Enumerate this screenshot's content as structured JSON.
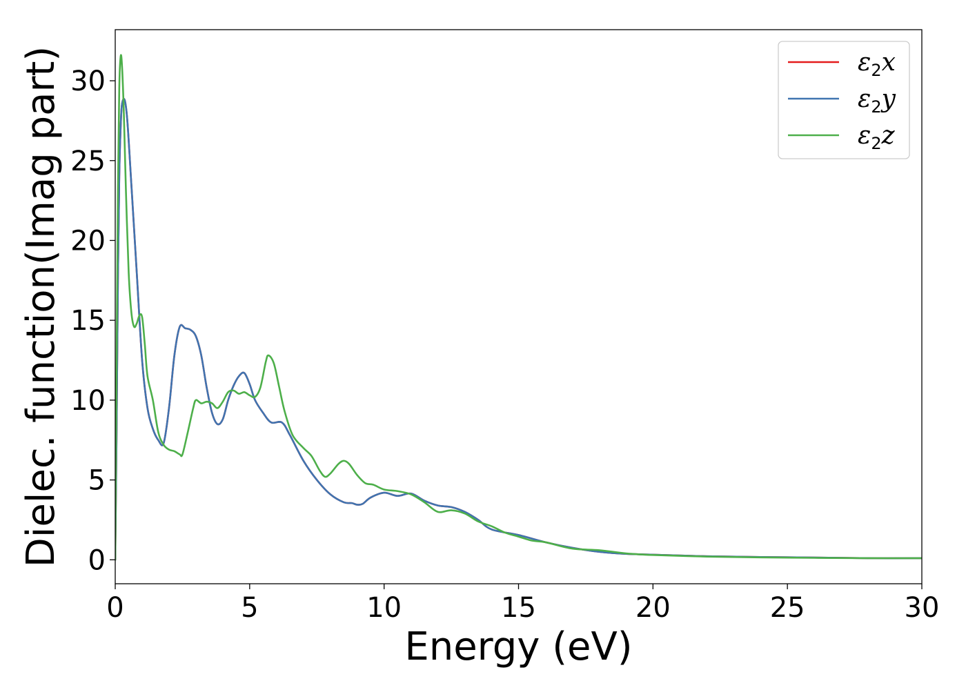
{
  "chart_data": {
    "type": "line",
    "title": "",
    "xlabel": "Energy (eV)",
    "ylabel": "Dielec. function(Imag part)",
    "xlim": [
      0,
      30
    ],
    "ylim": [
      -1.5,
      33.2
    ],
    "xticks": [
      0,
      5,
      10,
      15,
      20,
      25,
      30
    ],
    "yticks": [
      0,
      5,
      10,
      15,
      20,
      25,
      30
    ],
    "grid": false,
    "legend_position": "top-right",
    "series": [
      {
        "name": "ε2x",
        "legend": {
          "base": "ε",
          "sub": "2",
          "tail": "x"
        },
        "color": "#e41a1c",
        "x": [
          0,
          0.05,
          0.1,
          0.15,
          0.2,
          0.25,
          0.35,
          0.45,
          0.6,
          0.8,
          1.0,
          1.2,
          1.4,
          1.6,
          1.8,
          2.0,
          2.2,
          2.4,
          2.6,
          2.8,
          3.0,
          3.2,
          3.4,
          3.6,
          3.8,
          4.0,
          4.2,
          4.4,
          4.6,
          4.8,
          5.0,
          5.2,
          5.5,
          5.8,
          6.2,
          6.5,
          7.0,
          7.5,
          8.0,
          8.5,
          8.8,
          9.0,
          9.2,
          9.5,
          10.0,
          10.5,
          11.0,
          11.5,
          12.0,
          12.5,
          13.0,
          13.5,
          14.0,
          15.0,
          16.0,
          17.0,
          18.0,
          19.0,
          20.0,
          22.0,
          24.0,
          26.0,
          28.0,
          30.0
        ],
        "values": [
          0.0,
          8.0,
          17.5,
          24.0,
          27.0,
          28.5,
          28.8,
          27.5,
          23.5,
          18.0,
          12.5,
          9.5,
          8.2,
          7.5,
          7.3,
          9.5,
          12.8,
          14.6,
          14.5,
          14.4,
          14.0,
          12.8,
          10.8,
          9.2,
          8.5,
          8.8,
          10.0,
          10.9,
          11.5,
          11.7,
          11.0,
          10.0,
          9.2,
          8.6,
          8.6,
          7.8,
          6.2,
          5.0,
          4.1,
          3.6,
          3.55,
          3.45,
          3.5,
          3.9,
          4.2,
          4.0,
          4.15,
          3.7,
          3.4,
          3.3,
          3.0,
          2.5,
          1.9,
          1.55,
          1.1,
          0.75,
          0.5,
          0.37,
          0.32,
          0.22,
          0.17,
          0.14,
          0.1,
          0.1
        ]
      },
      {
        "name": "ε2y",
        "legend": {
          "base": "ε",
          "sub": "2",
          "tail": "y"
        },
        "color": "#3f74b0",
        "x": [
          0,
          0.05,
          0.1,
          0.15,
          0.2,
          0.25,
          0.35,
          0.45,
          0.6,
          0.8,
          1.0,
          1.2,
          1.4,
          1.6,
          1.8,
          2.0,
          2.2,
          2.4,
          2.6,
          2.8,
          3.0,
          3.2,
          3.4,
          3.6,
          3.8,
          4.0,
          4.2,
          4.4,
          4.6,
          4.8,
          5.0,
          5.2,
          5.5,
          5.8,
          6.2,
          6.5,
          7.0,
          7.5,
          8.0,
          8.5,
          8.8,
          9.0,
          9.2,
          9.5,
          10.0,
          10.5,
          11.0,
          11.5,
          12.0,
          12.5,
          13.0,
          13.5,
          14.0,
          15.0,
          16.0,
          17.0,
          18.0,
          19.0,
          20.0,
          22.0,
          24.0,
          26.0,
          28.0,
          30.0
        ],
        "values": [
          0.0,
          8.0,
          17.5,
          24.0,
          27.0,
          28.5,
          28.8,
          27.5,
          23.5,
          18.0,
          12.5,
          9.5,
          8.2,
          7.5,
          7.3,
          9.5,
          12.8,
          14.6,
          14.5,
          14.4,
          14.0,
          12.8,
          10.8,
          9.2,
          8.5,
          8.8,
          10.0,
          10.9,
          11.5,
          11.7,
          11.0,
          10.0,
          9.2,
          8.6,
          8.6,
          7.8,
          6.2,
          5.0,
          4.1,
          3.6,
          3.55,
          3.45,
          3.5,
          3.9,
          4.2,
          4.0,
          4.15,
          3.7,
          3.4,
          3.3,
          3.0,
          2.5,
          1.9,
          1.55,
          1.1,
          0.75,
          0.5,
          0.37,
          0.32,
          0.22,
          0.17,
          0.14,
          0.1,
          0.1
        ]
      },
      {
        "name": "ε2z",
        "legend": {
          "base": "ε",
          "sub": "2",
          "tail": "z"
        },
        "color": "#4daf4a",
        "x": [
          0,
          0.05,
          0.1,
          0.15,
          0.2,
          0.25,
          0.32,
          0.4,
          0.5,
          0.6,
          0.7,
          0.8,
          0.9,
          1.0,
          1.1,
          1.2,
          1.4,
          1.6,
          1.8,
          2.0,
          2.2,
          2.4,
          2.5,
          2.7,
          2.9,
          3.0,
          3.2,
          3.4,
          3.6,
          3.8,
          4.0,
          4.2,
          4.4,
          4.6,
          4.8,
          5.0,
          5.2,
          5.4,
          5.6,
          5.7,
          5.9,
          6.1,
          6.3,
          6.6,
          7.0,
          7.3,
          7.6,
          7.8,
          8.0,
          8.3,
          8.5,
          8.7,
          9.0,
          9.3,
          9.6,
          10.0,
          10.5,
          11.0,
          11.5,
          12.0,
          12.5,
          13.0,
          13.5,
          14.0,
          14.5,
          15.0,
          15.5,
          16.0,
          17.0,
          18.0,
          19.0,
          20.0,
          22.0,
          24.0,
          26.0,
          28.0,
          30.0
        ],
        "values": [
          0.0,
          12.0,
          23.0,
          29.5,
          31.5,
          31.0,
          28.0,
          23.0,
          18.0,
          15.5,
          14.6,
          14.8,
          15.3,
          15.2,
          13.5,
          11.5,
          10.0,
          8.0,
          7.2,
          6.9,
          6.8,
          6.6,
          6.6,
          8.0,
          9.5,
          10.0,
          9.8,
          9.9,
          9.8,
          9.5,
          9.9,
          10.5,
          10.6,
          10.4,
          10.5,
          10.3,
          10.2,
          10.8,
          12.4,
          12.8,
          12.3,
          10.8,
          9.3,
          7.8,
          7.0,
          6.5,
          5.6,
          5.2,
          5.4,
          6.0,
          6.2,
          6.0,
          5.3,
          4.8,
          4.7,
          4.4,
          4.3,
          4.1,
          3.6,
          3.0,
          3.1,
          2.9,
          2.4,
          2.1,
          1.7,
          1.45,
          1.2,
          1.1,
          0.7,
          0.6,
          0.4,
          0.3,
          0.2,
          0.15,
          0.12,
          0.1,
          0.1
        ]
      }
    ]
  }
}
